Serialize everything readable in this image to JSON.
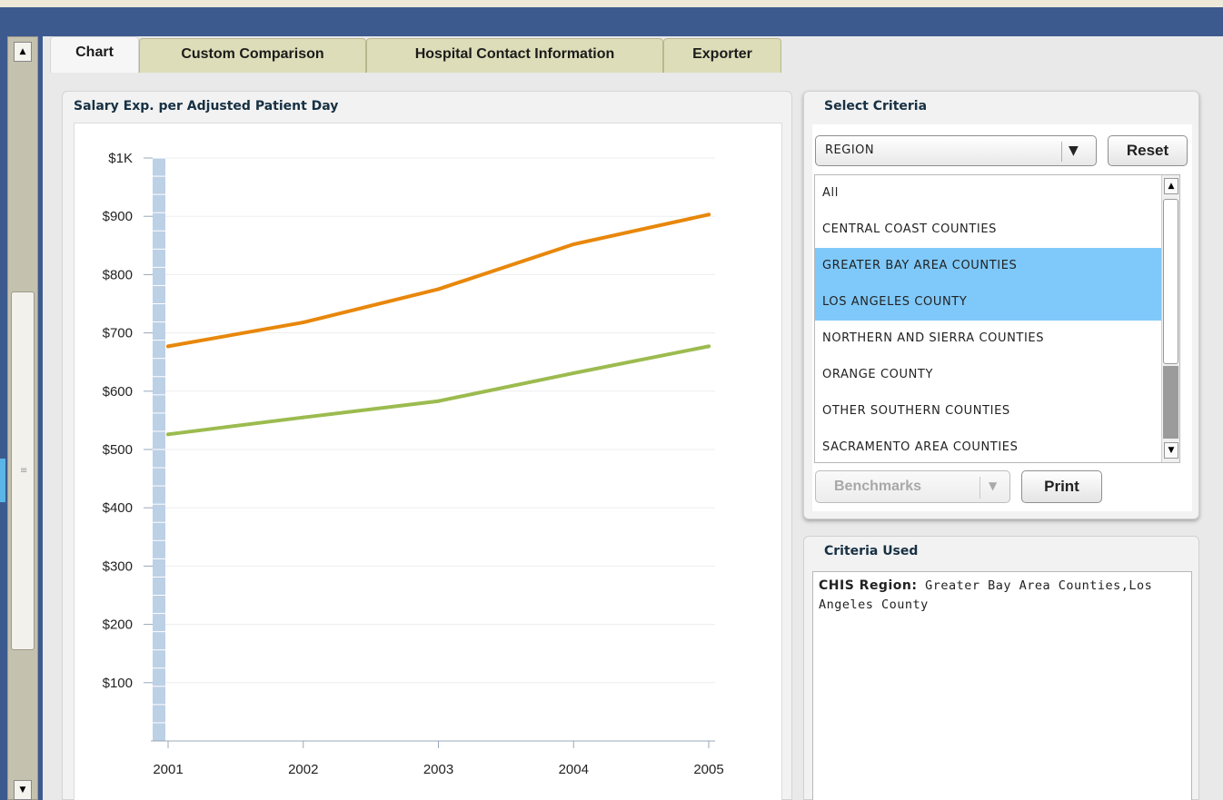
{
  "tabs": [
    {
      "label": "Chart",
      "active": true
    },
    {
      "label": "Custom Comparison",
      "active": false
    },
    {
      "label": "Hospital Contact Information",
      "active": false
    },
    {
      "label": "Exporter",
      "active": false
    }
  ],
  "chart_panel": {
    "title": "Salary Exp. per Adjusted Patient Day"
  },
  "chart_data": {
    "type": "line",
    "title": "Salary Exp. per Adjusted Patient Day",
    "xlabel": "",
    "ylabel": "",
    "x": [
      "2001",
      "2002",
      "2003",
      "2004",
      "2005"
    ],
    "ylim": [
      0,
      1000
    ],
    "y_ticks": [
      {
        "value": 1000,
        "label": "$1K"
      },
      {
        "value": 900,
        "label": "$900"
      },
      {
        "value": 800,
        "label": "$800"
      },
      {
        "value": 700,
        "label": "$700"
      },
      {
        "value": 600,
        "label": "$600"
      },
      {
        "value": 500,
        "label": "$500"
      },
      {
        "value": 400,
        "label": "$400"
      },
      {
        "value": 300,
        "label": "$300"
      },
      {
        "value": 200,
        "label": "$200"
      },
      {
        "value": 100,
        "label": "$100"
      }
    ],
    "grid": true,
    "series": [
      {
        "color": "#e8870b",
        "values": [
          677,
          718,
          775,
          852,
          903
        ]
      },
      {
        "color": "#9cbb4f",
        "values": [
          526,
          555,
          583,
          631,
          677
        ]
      }
    ]
  },
  "select_criteria": {
    "title": "Select Criteria",
    "dropdown_value": "REGION",
    "reset_label": "Reset",
    "options": [
      {
        "label": "All",
        "selected": false
      },
      {
        "label": "CENTRAL COAST COUNTIES",
        "selected": false
      },
      {
        "label": "GREATER BAY AREA COUNTIES",
        "selected": true
      },
      {
        "label": "LOS ANGELES COUNTY",
        "selected": true
      },
      {
        "label": "NORTHERN AND SIERRA COUNTIES",
        "selected": false
      },
      {
        "label": "ORANGE COUNTY",
        "selected": false
      },
      {
        "label": "OTHER SOUTHERN COUNTIES",
        "selected": false
      },
      {
        "label": "SACRAMENTO AREA COUNTIES",
        "selected": false
      }
    ],
    "benchmarks_label": "Benchmarks",
    "print_label": "Print"
  },
  "criteria_used": {
    "title": "Criteria Used",
    "label": "CHIS Region:",
    "value": "Greater Bay Area Counties,Los Angeles County"
  },
  "colors": {
    "frame": "#3d5a8f",
    "selected_row": "#7fc9fa",
    "axis_band": "#bcd0e6"
  }
}
